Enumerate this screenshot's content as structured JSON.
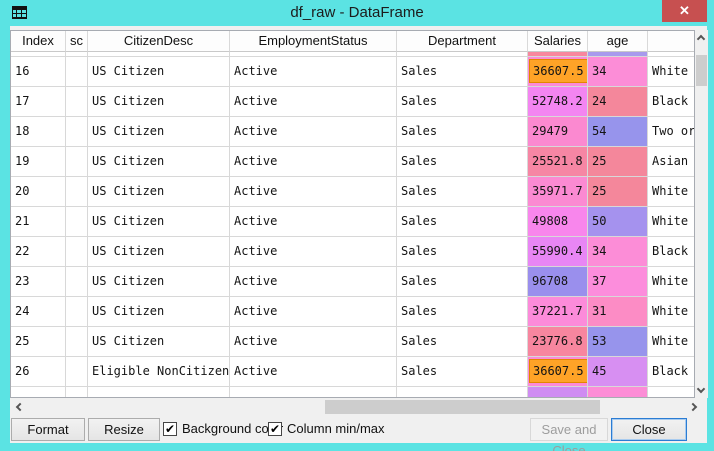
{
  "window": {
    "title": "df_raw - DataFrame"
  },
  "colors": {
    "titlebar": "#5BE3E3",
    "close_button": "#C75050",
    "highlight_fill": "#FFA327",
    "highlight_border": "#E18700"
  },
  "table": {
    "columns": [
      {
        "label": "Index"
      },
      {
        "label": "sc"
      },
      {
        "label": "CitizenDesc"
      },
      {
        "label": "EmploymentStatus"
      },
      {
        "label": "Department"
      },
      {
        "label": "Salaries"
      },
      {
        "label": "age"
      },
      {
        "label": ""
      }
    ],
    "partial_row_top": {
      "salaries_color": "#F8879E",
      "age_color": "#A89AED"
    },
    "partial_row_bottom": {
      "salaries_color": "#CF8CF2",
      "age_color": "#FC8DD6"
    },
    "rows": [
      {
        "index": "16",
        "citizendesc": "US Citizen",
        "employmentstatus": "Active",
        "department": "Sales",
        "salary": "36607.5",
        "salary_color": "#FC8BD7",
        "salary_highlighted": true,
        "age": "34",
        "age_color": "#FC8DD7",
        "race": "White"
      },
      {
        "index": "17",
        "citizendesc": "US Citizen",
        "employmentstatus": "Active",
        "department": "Sales",
        "salary": "52748.2",
        "salary_color": "#F385F1",
        "salary_highlighted": false,
        "age": "24",
        "age_color": "#F4879B",
        "race": "Black"
      },
      {
        "index": "18",
        "citizendesc": "US Citizen",
        "employmentstatus": "Active",
        "department": "Sales",
        "salary": "29479",
        "salary_color": "#FB89D0",
        "salary_highlighted": false,
        "age": "54",
        "age_color": "#9794EC",
        "race": "Two or"
      },
      {
        "index": "19",
        "citizendesc": "US Citizen",
        "employmentstatus": "Active",
        "department": "Sales",
        "salary": "25521.8",
        "salary_color": "#F686A4",
        "salary_highlighted": false,
        "age": "25",
        "age_color": "#F4879B",
        "race": "Asian"
      },
      {
        "index": "20",
        "citizendesc": "US Citizen",
        "employmentstatus": "Active",
        "department": "Sales",
        "salary": "35971.7",
        "salary_color": "#FB8AD2",
        "salary_highlighted": false,
        "age": "25",
        "age_color": "#F4879B",
        "race": "White"
      },
      {
        "index": "21",
        "citizendesc": "US Citizen",
        "employmentstatus": "Active",
        "department": "Sales",
        "salary": "49808",
        "salary_color": "#F886EC",
        "salary_highlighted": false,
        "age": "50",
        "age_color": "#A592EE",
        "race": "White"
      },
      {
        "index": "22",
        "citizendesc": "US Citizen",
        "employmentstatus": "Active",
        "department": "Sales",
        "salary": "55990.4",
        "salary_color": "#E886F4",
        "salary_highlighted": false,
        "age": "34",
        "age_color": "#FC8DD7",
        "race": "Black"
      },
      {
        "index": "23",
        "citizendesc": "US Citizen",
        "employmentstatus": "Active",
        "department": "Sales",
        "salary": "96708",
        "salary_color": "#9A8FED",
        "salary_highlighted": false,
        "age": "37",
        "age_color": "#FC8DDC",
        "race": "White"
      },
      {
        "index": "24",
        "citizendesc": "US Citizen",
        "employmentstatus": "Active",
        "department": "Sales",
        "salary": "37221.7",
        "salary_color": "#FC8BDA",
        "salary_highlighted": false,
        "age": "31",
        "age_color": "#FC8CC5",
        "race": "White"
      },
      {
        "index": "25",
        "citizendesc": "US Citizen",
        "employmentstatus": "Active",
        "department": "Sales",
        "salary": "23776.8",
        "salary_color": "#F7869F",
        "salary_highlighted": false,
        "age": "53",
        "age_color": "#9794EC",
        "race": "White"
      },
      {
        "index": "26",
        "citizendesc": "Eligible NonCitizen",
        "employmentstatus": "Active",
        "department": "Sales",
        "salary": "36607.5",
        "salary_color": "#FC8BD7",
        "salary_highlighted": true,
        "age": "45",
        "age_color": "#D78FF2",
        "race": "Black"
      }
    ]
  },
  "footer": {
    "format_label": "Format",
    "resize_label": "Resize",
    "background_color_label": "Background color",
    "background_color_checked": true,
    "column_minmax_label": "Column min/max",
    "column_minmax_checked": true,
    "save_and_close_label": "Save and Close",
    "close_label": "Close",
    "check_glyph": "✔"
  }
}
